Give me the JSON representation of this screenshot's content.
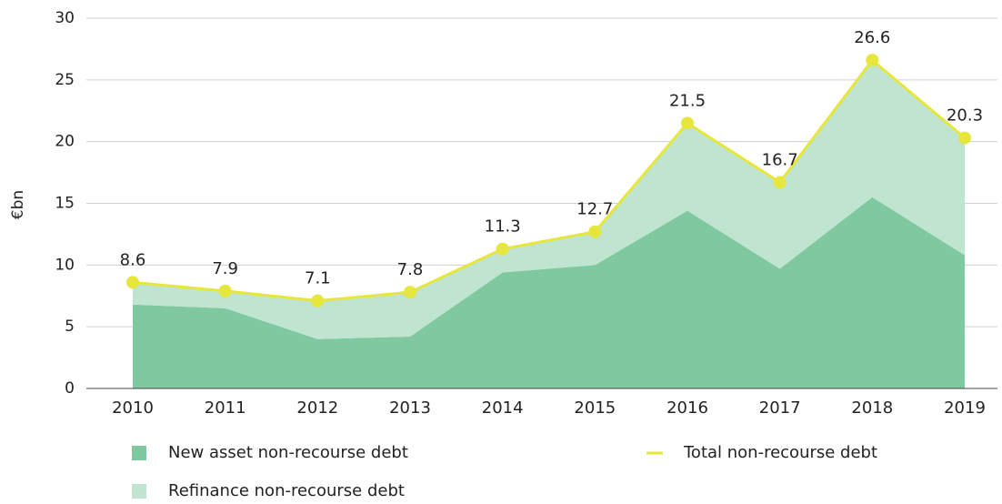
{
  "chart_data": {
    "type": "area",
    "stacked": true,
    "ylabel": "€bn",
    "categories": [
      "2010",
      "2011",
      "2012",
      "2013",
      "2014",
      "2015",
      "2016",
      "2017",
      "2018",
      "2019"
    ],
    "series": [
      {
        "name": "New asset non-recourse debt",
        "color": "#80c9a0",
        "type": "area",
        "values": [
          6.8,
          6.5,
          4.0,
          4.2,
          9.4,
          10.0,
          14.4,
          9.7,
          15.5,
          10.8
        ]
      },
      {
        "name": "Refinance non-recourse debt",
        "color": "#bfe5d0",
        "type": "area",
        "values": [
          1.8,
          1.4,
          3.1,
          3.6,
          1.9,
          2.7,
          7.1,
          7.0,
          11.1,
          9.5
        ]
      },
      {
        "name": "Total non-recourse debt",
        "color": "#e6e63c",
        "type": "line",
        "values": [
          8.6,
          7.9,
          7.1,
          7.8,
          11.3,
          12.7,
          21.5,
          16.7,
          26.6,
          20.3
        ]
      }
    ],
    "ylim": [
      0,
      30
    ],
    "yticks": [
      0,
      5,
      10,
      15,
      20,
      25,
      30
    ],
    "grid": true,
    "legend": "bottom"
  }
}
